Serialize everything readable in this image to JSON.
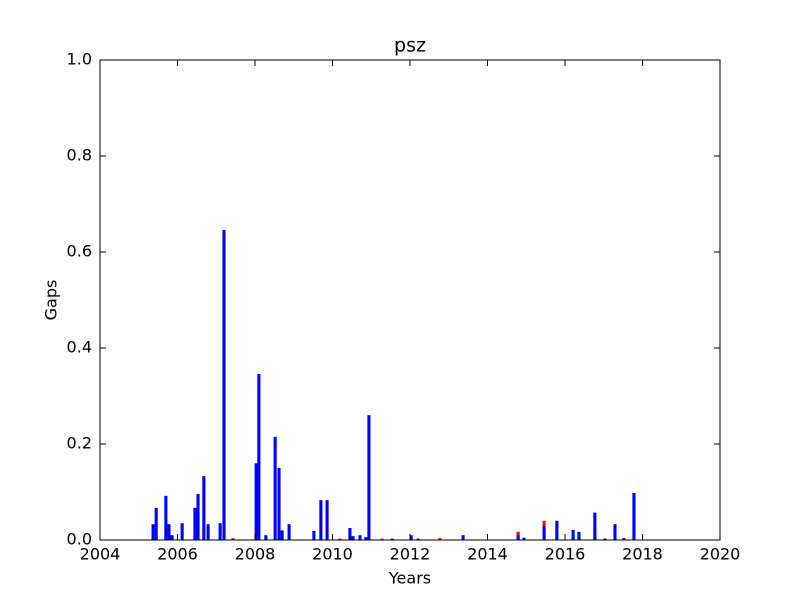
{
  "chart_data": {
    "type": "bar",
    "title": "psz",
    "x_label": "Years",
    "y_label": "Gaps",
    "x": [
      2005.37,
      2005.45,
      2005.7,
      2005.78,
      2005.86,
      2006.12,
      2006.45,
      2006.53,
      2006.68,
      2006.79,
      2007.1,
      2007.2,
      2007.43,
      2008.03,
      2008.1,
      2008.28,
      2008.52,
      2008.62,
      2008.7,
      2008.88,
      2009.52,
      2009.7,
      2009.86,
      2010.19,
      2010.45,
      2010.53,
      2010.71,
      2010.86,
      2010.94,
      2011.28,
      2011.54,
      2012.03,
      2012.21,
      2012.77,
      2013.37,
      2014.79,
      2014.94,
      2015.46,
      2015.79,
      2016.21,
      2016.36,
      2016.77,
      2017.03,
      2017.29,
      2017.52,
      2017.78
    ],
    "series": [
      {
        "color": "#ff0000",
        "values": [
          null,
          null,
          null,
          null,
          null,
          null,
          null,
          null,
          null,
          null,
          null,
          null,
          0.004,
          null,
          null,
          null,
          null,
          null,
          null,
          null,
          null,
          null,
          null,
          0.003,
          null,
          null,
          null,
          null,
          null,
          0.003,
          null,
          null,
          null,
          0.004,
          null,
          0.017,
          null,
          0.04,
          null,
          null,
          null,
          null,
          null,
          null,
          null,
          null
        ]
      },
      {
        "color": "#0000ff",
        "values": [
          0.033,
          0.067,
          0.092,
          0.033,
          0.01,
          0.035,
          0.067,
          0.096,
          0.133,
          0.033,
          0.035,
          0.646,
          null,
          0.16,
          0.346,
          0.01,
          0.215,
          0.15,
          0.02,
          0.033,
          0.019,
          0.083,
          0.083,
          null,
          0.025,
          0.008,
          0.01,
          0.006,
          0.26,
          null,
          0.003,
          0.01,
          0.003,
          null,
          0.01,
          0.01,
          0.005,
          0.029,
          0.04,
          0.021,
          0.017,
          0.057,
          0.003,
          0.033,
          0.004,
          0.098
        ]
      }
    ],
    "xlim": [
      2004,
      2020
    ],
    "xticks": [
      2004,
      2006,
      2008,
      2010,
      2012,
      2014,
      2016,
      2018,
      2020
    ],
    "ylim": [
      0,
      1
    ],
    "yticks": [
      {
        "value": 0,
        "label": "0.0"
      },
      0.2,
      0.4,
      0.6,
      0.8,
      {
        "value": 1,
        "label": "1.0"
      }
    ]
  }
}
